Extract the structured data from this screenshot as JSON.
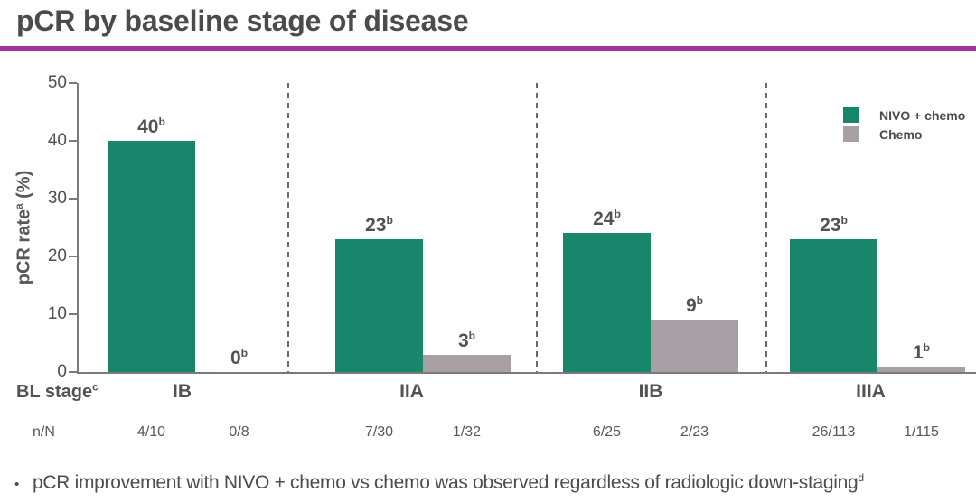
{
  "header": {
    "title": "pCR by baseline stage of disease",
    "underline_color": "#A2339C"
  },
  "legend": [
    {
      "label": "NIVO + chemo",
      "color": "#17866A"
    },
    {
      "label": "Chemo",
      "color": "#A8A0A4"
    }
  ],
  "chart_data": {
    "type": "bar",
    "title": "pCR by baseline stage of disease",
    "ylabel": "pCR rate^a (%)",
    "xlabel": "",
    "ylim": [
      0,
      50
    ],
    "yticks": [
      0,
      10,
      20,
      30,
      40,
      50
    ],
    "grid": false,
    "legend_position": "top-right",
    "group_separators": "dashed",
    "categories": [
      "IB",
      "IIA",
      "IIB",
      "IIIA"
    ],
    "series": [
      {
        "name": "NIVO + chemo",
        "color": "#17866A",
        "values": [
          40,
          23,
          24,
          23
        ],
        "labels": [
          "40^b",
          "23^b",
          "24^b",
          "23^b"
        ],
        "n_over_N": [
          "4/10",
          "7/30",
          "6/25",
          "26/113"
        ]
      },
      {
        "name": "Chemo",
        "color": "#A8A0A4",
        "values": [
          0,
          3,
          9,
          1
        ],
        "labels": [
          "0^b",
          "3^b",
          "9^b",
          "1^b"
        ],
        "n_over_N": [
          "0/8",
          "1/32",
          "2/23",
          "1/115"
        ]
      }
    ],
    "x_axis_row_label": "BL stage^c",
    "n_row_label": "n/N"
  },
  "footnote": {
    "bullet": "•",
    "text": "pCR improvement with NIVO + chemo vs chemo was observed regardless of radiologic down-staging^d"
  }
}
